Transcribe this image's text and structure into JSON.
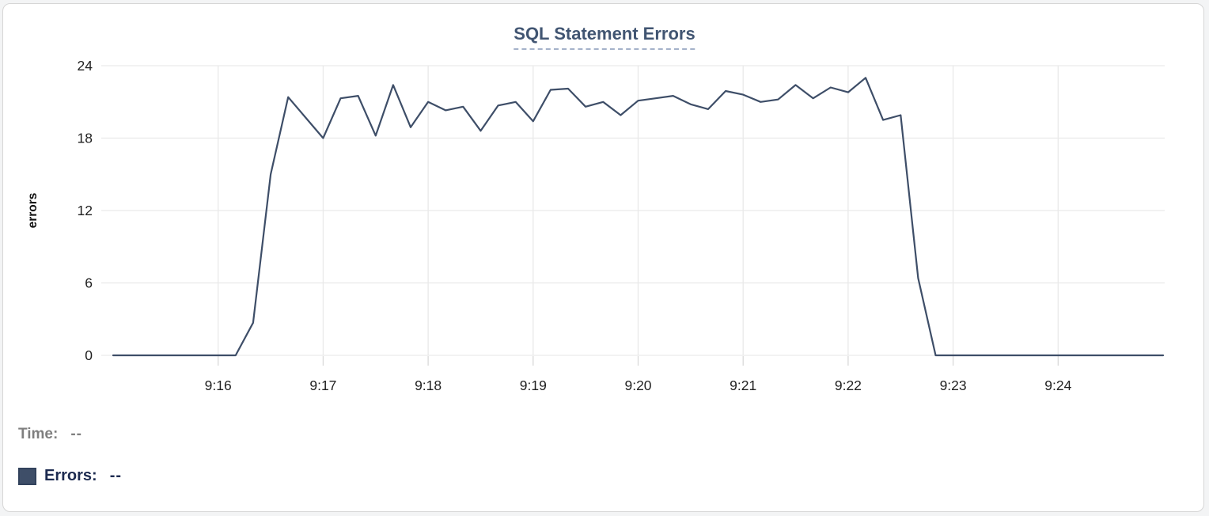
{
  "card": {
    "background": "#ffffff",
    "border_color": "#d6d6d6"
  },
  "chart_data": {
    "type": "line",
    "title": "SQL Statement Errors",
    "xlabel": "",
    "ylabel": "errors",
    "ylim": [
      0,
      24
    ],
    "y_ticks": [
      0,
      6,
      12,
      18,
      24
    ],
    "x_tick_labels": [
      "9:16",
      "9:17",
      "9:18",
      "9:19",
      "9:20",
      "9:21",
      "9:22",
      "9:23",
      "9:24"
    ],
    "grid": true,
    "legend_position": "bottom-left",
    "line_color": "#3e4e68",
    "x": [
      "9:15:00",
      "9:15:10",
      "9:15:20",
      "9:15:30",
      "9:15:40",
      "9:15:50",
      "9:16:00",
      "9:16:10",
      "9:16:20",
      "9:16:30",
      "9:16:40",
      "9:16:50",
      "9:17:00",
      "9:17:10",
      "9:17:20",
      "9:17:30",
      "9:17:40",
      "9:17:50",
      "9:18:00",
      "9:18:10",
      "9:18:20",
      "9:18:30",
      "9:18:40",
      "9:18:50",
      "9:19:00",
      "9:19:10",
      "9:19:20",
      "9:19:30",
      "9:19:40",
      "9:19:50",
      "9:20:00",
      "9:20:10",
      "9:20:20",
      "9:20:30",
      "9:20:40",
      "9:20:50",
      "9:21:00",
      "9:21:10",
      "9:21:20",
      "9:21:30",
      "9:21:40",
      "9:21:50",
      "9:22:00",
      "9:22:10",
      "9:22:20",
      "9:22:30",
      "9:22:40",
      "9:22:50",
      "9:23:00",
      "9:23:10",
      "9:23:20",
      "9:23:30",
      "9:23:40",
      "9:23:50",
      "9:24:00",
      "9:24:10",
      "9:24:20",
      "9:24:30",
      "9:24:40",
      "9:24:50",
      "9:25:00"
    ],
    "series": [
      {
        "name": "Errors",
        "color": "#3e4e68",
        "values": [
          0,
          0,
          0,
          0,
          0,
          0,
          0,
          0,
          2.7,
          15,
          21.4,
          19.7,
          18,
          21.3,
          21.5,
          18.2,
          22.4,
          18.9,
          21,
          20.3,
          20.6,
          18.6,
          20.7,
          21,
          19.4,
          22,
          22.1,
          20.6,
          21,
          19.9,
          21.1,
          21.3,
          21.5,
          20.8,
          20.4,
          21.9,
          21.6,
          21,
          21.2,
          22.4,
          21.3,
          22.2,
          21.8,
          23,
          19.5,
          19.9,
          6.4,
          0,
          0,
          0,
          0,
          0,
          0,
          0,
          0,
          0,
          0,
          0,
          0,
          0,
          0
        ]
      }
    ]
  },
  "readout": {
    "time_label": "Time:",
    "time_value": "--",
    "errors_label": "Errors:",
    "errors_value": "--",
    "swatch_color": "#3e4e68"
  },
  "colors": {
    "title": "#415572",
    "title_underline": "#a5b2ca",
    "grid_line": "#e9e9e9",
    "tick_mark": "#d9d9d9",
    "tick_text": "#1f1f1f",
    "axis_title_text": "#111111",
    "time_readout_text": "#7f7f7f",
    "errors_readout_text": "#1d2b50"
  }
}
